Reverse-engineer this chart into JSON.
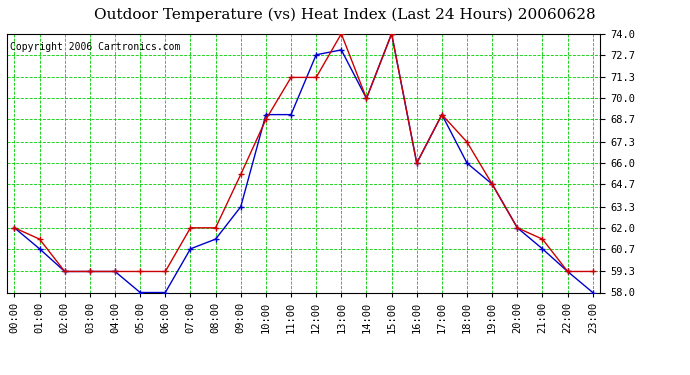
{
  "title": "Outdoor Temperature (vs) Heat Index (Last 24 Hours) 20060628",
  "copyright": "Copyright 2006 Cartronics.com",
  "hours": [
    "00:00",
    "01:00",
    "02:00",
    "03:00",
    "04:00",
    "05:00",
    "06:00",
    "07:00",
    "08:00",
    "09:00",
    "10:00",
    "11:00",
    "12:00",
    "13:00",
    "14:00",
    "15:00",
    "16:00",
    "17:00",
    "18:00",
    "19:00",
    "20:00",
    "21:00",
    "22:00",
    "23:00"
  ],
  "temp": [
    62.0,
    60.7,
    59.3,
    59.3,
    59.3,
    58.0,
    58.0,
    60.7,
    61.3,
    63.3,
    69.0,
    69.0,
    72.7,
    73.0,
    70.0,
    74.0,
    66.0,
    69.0,
    66.0,
    64.7,
    62.0,
    60.7,
    59.3,
    58.0
  ],
  "heat_index": [
    62.0,
    61.3,
    59.3,
    59.3,
    59.3,
    59.3,
    59.3,
    62.0,
    62.0,
    65.3,
    68.7,
    71.3,
    71.3,
    74.0,
    70.0,
    74.0,
    66.0,
    69.0,
    67.3,
    64.7,
    62.0,
    61.3,
    59.3,
    59.3
  ],
  "temp_color": "#0000CC",
  "heat_color": "#CC0000",
  "bg_color": "#FFFFFF",
  "plot_bg": "#FFFFFF",
  "grid_color": "#00CC00",
  "ymin": 58.0,
  "ymax": 74.0,
  "yticks": [
    58.0,
    59.3,
    60.7,
    62.0,
    63.3,
    64.7,
    66.0,
    67.3,
    68.7,
    70.0,
    71.3,
    72.7,
    74.0
  ],
  "title_fontsize": 11,
  "copyright_fontsize": 7,
  "tick_fontsize": 7.5,
  "marker_size": 5,
  "linewidth": 1.0
}
